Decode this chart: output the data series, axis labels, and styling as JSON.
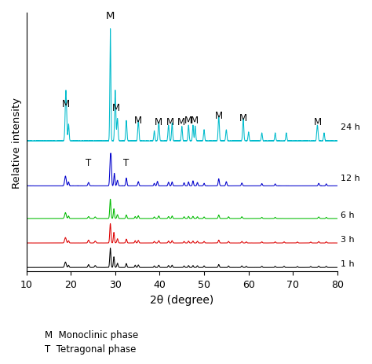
{
  "xlim": [
    10,
    80
  ],
  "xlabel": "2θ (degree)",
  "ylabel": "Relative intensity",
  "colors": {
    "1h": "#000000",
    "3h": "#dd0000",
    "6h": "#00bb00",
    "12h": "#0000cc",
    "24h": "#00bbcc"
  },
  "labels": {
    "1h": "1 h",
    "3h": "3 h",
    "6h": "6 h",
    "12h": "12 h",
    "24h": "24 h"
  },
  "legend_text": [
    "M  Monoclinic phase",
    "T  Tetragonal phase"
  ],
  "background_color": "#ffffff",
  "figsize": [
    4.74,
    4.64
  ],
  "dpi": 100,
  "xticks": [
    10,
    20,
    30,
    40,
    50,
    60,
    70,
    80
  ]
}
